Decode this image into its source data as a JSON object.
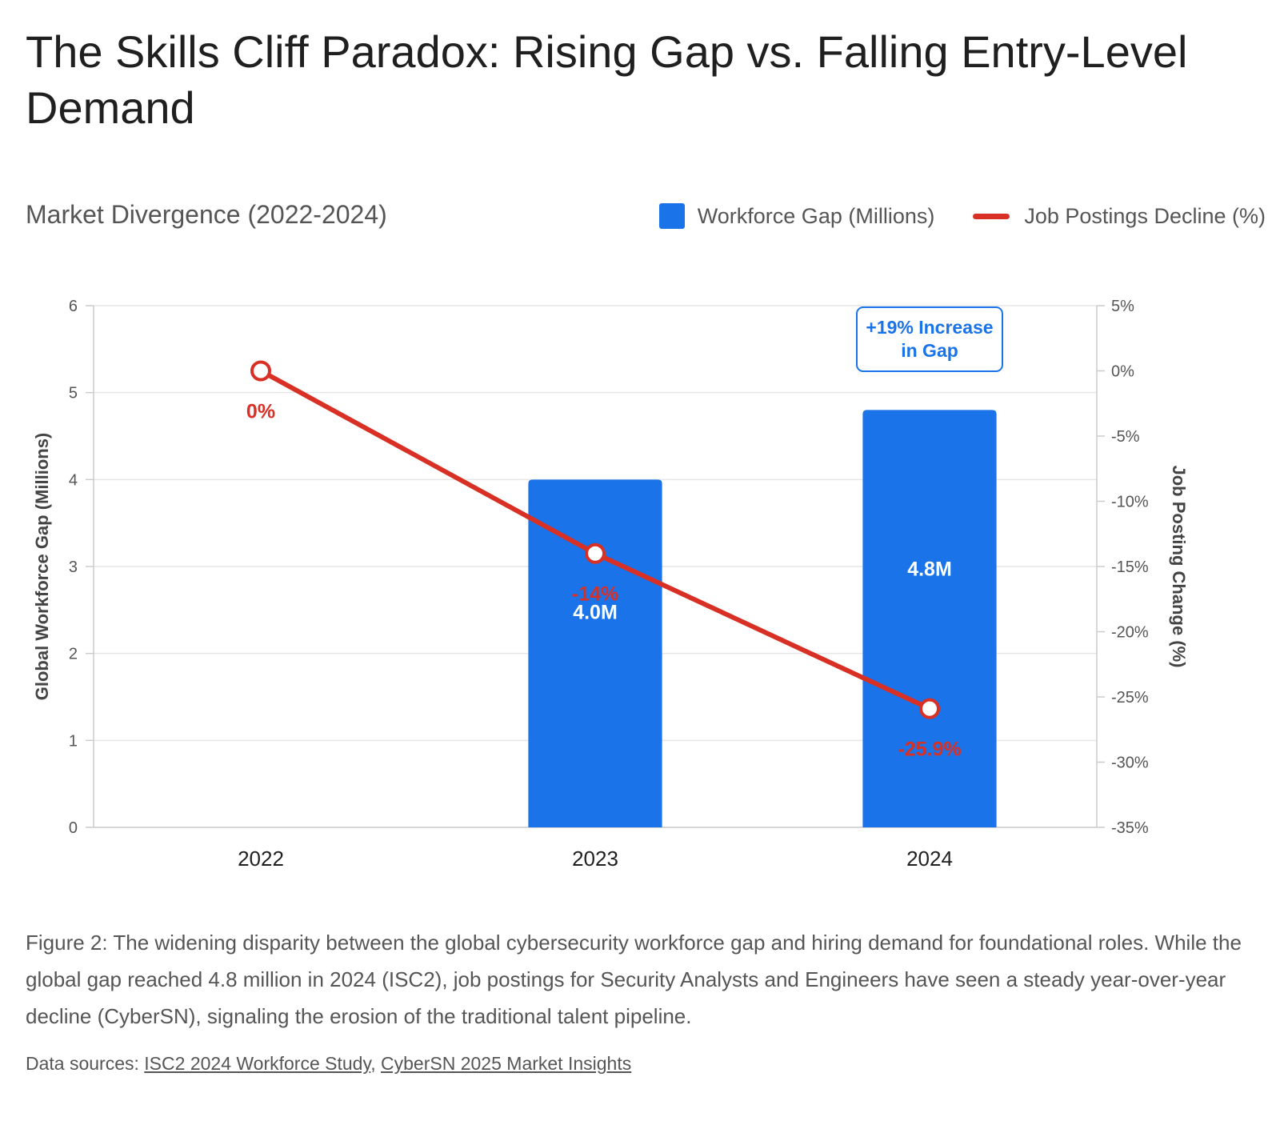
{
  "header": {
    "title": "The Skills Cliff Paradox: Rising Gap vs. Falling Entry-Level Demand",
    "subtitle": "Market Divergence (2022-2024)"
  },
  "legend": {
    "bar_label": "Workforce Gap (Millions)",
    "line_label": "Job Postings Decline (%)"
  },
  "caption": "Figure 2: The widening disparity between the global cybersecurity workforce gap and hiring demand for foundational roles. While the global gap reached 4.8 million in 2024 (ISC2), job postings for Security Analysts and Engineers have seen a steady year-over-year decline (CyberSN), signaling the erosion of the traditional talent pipeline.",
  "sources": {
    "prefix": "Data sources: ",
    "links": [
      "ISC2 2024 Workforce Study",
      "CyberSN 2025 Market Insights"
    ],
    "separator": ", "
  },
  "chart_data": {
    "type": "bar",
    "categories": [
      "2022",
      "2023",
      "2024"
    ],
    "series": [
      {
        "name": "Workforce Gap (Millions)",
        "type": "bar",
        "axis": "left",
        "values": [
          null,
          4.0,
          4.8
        ],
        "labels": [
          "",
          "4.0M",
          "4.8M"
        ],
        "color": "#1a73e8"
      },
      {
        "name": "Job Postings Decline (%)",
        "type": "line",
        "axis": "right",
        "values": [
          0,
          -14,
          -25.9
        ],
        "labels": [
          "0%",
          "-14%",
          "-25.9%"
        ],
        "color": "#d93025"
      }
    ],
    "y_left": {
      "label": "Global Workforce Gap (Millions)",
      "min": 0,
      "max": 6,
      "ticks": [
        0,
        1,
        2,
        3,
        4,
        5,
        6
      ],
      "tick_labels": [
        "0",
        "1",
        "2",
        "3",
        "4",
        "5",
        "6"
      ]
    },
    "y_right": {
      "label": "Job Posting Change (%)",
      "min": -35,
      "max": 5,
      "ticks": [
        5,
        0,
        -5,
        -10,
        -15,
        -20,
        -25,
        -30,
        -35
      ],
      "tick_labels": [
        "5%",
        "0%",
        "-5%",
        "-10%",
        "-15%",
        "-20%",
        "-25%",
        "-30%",
        "-35%"
      ]
    },
    "annotation": {
      "text_lines": [
        "+19% Increase",
        "in Gap"
      ],
      "category": "2024"
    },
    "grid": true
  }
}
